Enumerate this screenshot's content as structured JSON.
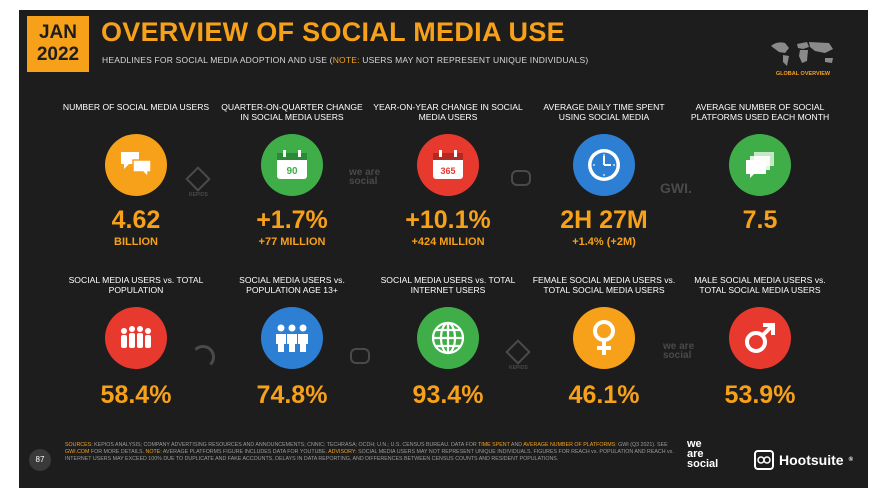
{
  "header": {
    "date_line1": "JAN",
    "date_line2": "2022",
    "title": "OVERVIEW OF SOCIAL MEDIA USE",
    "subtitle_main": "HEADLINES FOR SOCIAL MEDIA ADOPTION AND USE (",
    "subtitle_note_label": "NOTE:",
    "subtitle_note": " USERS MAY NOT REPRESENT UNIQUE INDIVIDUALS)",
    "global_tag": "GLOBAL OVERVIEW"
  },
  "row1": [
    {
      "label": "NUMBER OF SOCIAL MEDIA USERS",
      "value": "4.62",
      "sub": "BILLION",
      "color": "#f7a11a",
      "icon": "chat-bubbles-icon"
    },
    {
      "label": "QUARTER-ON-QUARTER CHANGE IN SOCIAL MEDIA USERS",
      "value": "+1.7%",
      "sub": "+77 MILLION",
      "color": "#3fae49",
      "icon": "calendar-90-icon",
      "icon_text": "90"
    },
    {
      "label": "YEAR-ON-YEAR CHANGE IN SOCIAL MEDIA USERS",
      "value": "+10.1%",
      "sub": "+424 MILLION",
      "color": "#e8392f",
      "icon": "calendar-365-icon",
      "icon_text": "365"
    },
    {
      "label": "AVERAGE DAILY TIME SPENT USING SOCIAL MEDIA",
      "value": "2H 27M",
      "sub": "+1.4% (+2M)",
      "color": "#2d7fd3",
      "icon": "clock-icon"
    },
    {
      "label": "AVERAGE NUMBER OF SOCIAL PLATFORMS USED EACH MONTH",
      "value": "7.5",
      "sub": "",
      "color": "#3fae49",
      "icon": "stacked-chat-icon"
    }
  ],
  "row2": [
    {
      "label": "SOCIAL MEDIA USERS vs. TOTAL POPULATION",
      "value": "58.4%",
      "color": "#e8392f",
      "icon": "crowd-icon"
    },
    {
      "label": "SOCIAL MEDIA USERS vs. POPULATION AGE 13+",
      "value": "74.8%",
      "color": "#2d7fd3",
      "icon": "people-group-icon"
    },
    {
      "label": "SOCIAL MEDIA USERS vs. TOTAL INTERNET USERS",
      "value": "93.4%",
      "color": "#3fae49",
      "icon": "globe-icon"
    },
    {
      "label": "FEMALE SOCIAL MEDIA USERS vs. TOTAL SOCIAL MEDIA USERS",
      "value": "46.1%",
      "color": "#f7a11a",
      "icon": "female-icon"
    },
    {
      "label": "MALE SOCIAL MEDIA USERS vs. TOTAL SOCIAL MEDIA USERS",
      "value": "53.9%",
      "color": "#e8392f",
      "icon": "male-icon"
    }
  ],
  "watermarks": {
    "kepios": "KEPIOS",
    "we_are_social": "we are social",
    "gwi": "GWI."
  },
  "footer": {
    "page_number": "87",
    "sources_label": "SOURCES:",
    "sources_text": " KEPIOS ANALYSIS; COMPANY ADVERTISING RESOURCES AND ANNOUNCEMENTS; CNNIC; TECHRASA; OCDH; U.N.; U.S. CENSUS BUREAU. DATA FOR ",
    "time_spent": "TIME SPENT",
    "and": " AND ",
    "avg_platforms": "AVERAGE NUMBER OF PLATFORMS",
    "colon": ": GWI (Q3 2021). SEE ",
    "gwi_link": "GWI.COM",
    "more": " FOR MORE DETAILS. ",
    "note_label": "NOTE:",
    "note_text": " AVERAGE PLATFORMS FIGURE INCLUDES DATA FOR YOUTUBE. ",
    "advisory_label": "ADVISORY:",
    "advisory_text": " SOCIAL MEDIA USERS MAY NOT REPRESENT UNIQUE INDIVIDUALS. FIGURES FOR REACH vs. POPULATION AND REACH vs. INTERNET USERS MAY EXCEED 100% DUE TO DUPLICATE AND FAKE ACCOUNTS, DELAYS IN DATA REPORTING, AND DIFFERENCES BETWEEN CENSUS COUNTS AND RESIDENT POPULATIONS.",
    "brand_we": "we",
    "brand_are": "are",
    "brand_social": "social",
    "brand_hootsuite": "Hootsuite",
    "registered": "®"
  }
}
